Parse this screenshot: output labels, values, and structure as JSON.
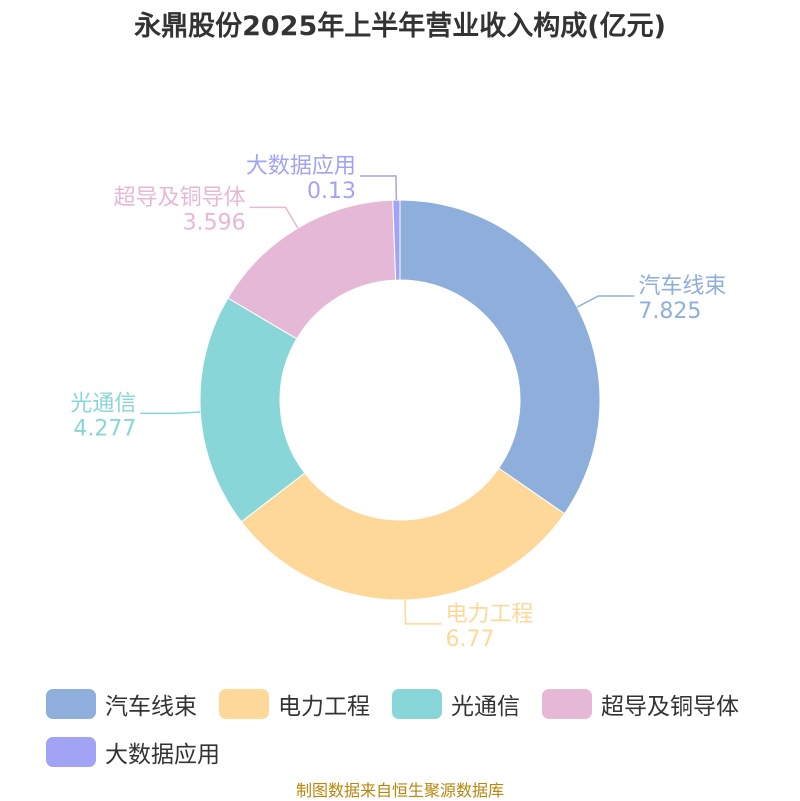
{
  "chart_data": {
    "type": "pie",
    "donut": true,
    "title": "永鼎股份2025年上半年营业收入构成(亿元)",
    "categories": [
      "汽车线束",
      "电力工程",
      "光通信",
      "超导及铜导体",
      "大数据应用"
    ],
    "values": [
      7.825,
      6.77,
      4.277,
      3.596,
      0.13
    ],
    "value_labels": [
      "7.825",
      "6.77",
      "4.277",
      "3.596",
      "0.13"
    ],
    "colors": [
      "#8eaedb",
      "#fdd899",
      "#88d6d8",
      "#e6b8d8",
      "#a1a3f5"
    ],
    "legend_position": "bottom"
  },
  "source_note": "制图数据来自恒生聚源数据库"
}
